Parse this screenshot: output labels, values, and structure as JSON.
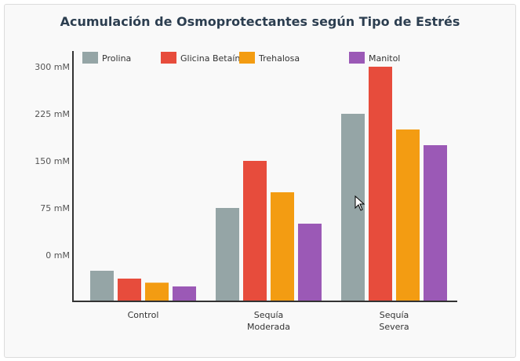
{
  "chart_data": {
    "type": "bar",
    "title": "Acumulación de Osmoprotectantes según Tipo de Estrés",
    "xlabel": "",
    "ylabel": "",
    "categories": [
      [
        "Control"
      ],
      [
        "Sequía",
        "Moderada"
      ],
      [
        "Sequía",
        "Severa"
      ]
    ],
    "y_ticks": [
      0,
      75,
      150,
      225,
      300
    ],
    "y_tick_unit": "mM",
    "ylim": [
      -74,
      300
    ],
    "grid": false,
    "legend_position": "top-left",
    "series": [
      {
        "name": "Prolina",
        "color": "#95a5a6",
        "values": [
          -25,
          75,
          225
        ]
      },
      {
        "name": "Glicina Betaína",
        "color": "#e74c3c",
        "values": [
          -37.5,
          150,
          300
        ]
      },
      {
        "name": "Trehalosa",
        "color": "#f39c12",
        "values": [
          -44,
          100,
          200
        ]
      },
      {
        "name": "Manitol",
        "color": "#9b59b6",
        "values": [
          -50,
          50,
          175
        ]
      }
    ]
  }
}
